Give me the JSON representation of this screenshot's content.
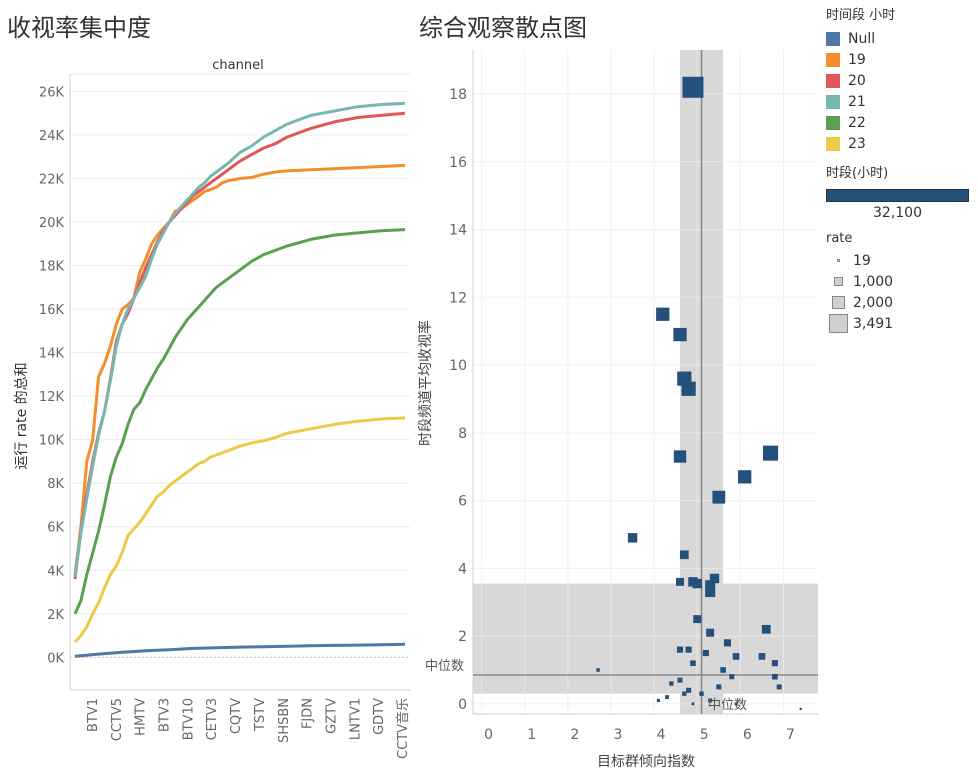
{
  "left_panel": {
    "title": "收视率集中度"
  },
  "right_panel": {
    "title": "综合观察散点图"
  },
  "legend": {
    "color_title": "时间段 小时",
    "items": [
      {
        "label": "Null",
        "color": "#4e79a7"
      },
      {
        "label": "19",
        "color": "#f28e2b"
      },
      {
        "label": "20",
        "color": "#e15759"
      },
      {
        "label": "21",
        "color": "#76b7b2"
      },
      {
        "label": "22",
        "color": "#59a14f"
      },
      {
        "label": "23",
        "color": "#edc948"
      }
    ],
    "bar_title": "时段(小时)",
    "bar_value": "32,100",
    "bar_color": "#24517c",
    "size_title": "rate",
    "size_items": [
      "19",
      "1,000",
      "2,000",
      "3,491"
    ]
  },
  "chart_data": [
    {
      "type": "line",
      "title": "",
      "header": "channel",
      "xlabel": "",
      "ylabel": "运行 rate 的总和",
      "ylim": [
        -1500,
        26800
      ],
      "yticks": [
        "0K",
        "2K",
        "4K",
        "6K",
        "8K",
        "10K",
        "12K",
        "14K",
        "16K",
        "18K",
        "20K",
        "22K",
        "24K",
        "26K"
      ],
      "categories": [
        "BTV1",
        "CCTV5",
        "HMTV",
        "BTV3",
        "BTV10",
        "CETV3",
        "CQTV",
        "TSTV",
        "SHSBN",
        "FJDN",
        "GZTV",
        "LNTV1",
        "GDTV",
        "CCTV音乐"
      ],
      "x_range": [
        0,
        56
      ],
      "series": [
        {
          "name": "Null",
          "color": "#4e79a7",
          "points": [
            [
              0,
              50
            ],
            [
              4,
              150
            ],
            [
              8,
              230
            ],
            [
              12,
              300
            ],
            [
              16,
              350
            ],
            [
              20,
              410
            ],
            [
              24,
              440
            ],
            [
              28,
              470
            ],
            [
              32,
              490
            ],
            [
              36,
              510
            ],
            [
              40,
              530
            ],
            [
              44,
              550
            ],
            [
              48,
              565
            ],
            [
              52,
              580
            ],
            [
              56,
              600
            ]
          ]
        },
        {
          "name": "19",
          "color": "#f28e2b",
          "points": [
            [
              0,
              3800
            ],
            [
              1,
              6000
            ],
            [
              2,
              9000
            ],
            [
              3,
              10000
            ],
            [
              4,
              12900
            ],
            [
              5,
              13500
            ],
            [
              6,
              14300
            ],
            [
              7,
              15300
            ],
            [
              8,
              16000
            ],
            [
              9,
              16200
            ],
            [
              10,
              16500
            ],
            [
              11,
              17700
            ],
            [
              12,
              18300
            ],
            [
              13,
              19000
            ],
            [
              14,
              19400
            ],
            [
              15,
              19700
            ],
            [
              16,
              20000
            ],
            [
              17,
              20500
            ],
            [
              18,
              20600
            ],
            [
              19,
              20800
            ],
            [
              20,
              21000
            ],
            [
              21,
              21200
            ],
            [
              22,
              21400
            ],
            [
              23,
              21500
            ],
            [
              24,
              21600
            ],
            [
              25,
              21800
            ],
            [
              26,
              21900
            ],
            [
              28,
              22000
            ],
            [
              30,
              22050
            ],
            [
              32,
              22200
            ],
            [
              34,
              22300
            ],
            [
              36,
              22350
            ],
            [
              40,
              22400
            ],
            [
              44,
              22450
            ],
            [
              48,
              22500
            ],
            [
              52,
              22550
            ],
            [
              56,
              22600
            ]
          ]
        },
        {
          "name": "20",
          "color": "#e15759",
          "points": [
            [
              0,
              3600
            ],
            [
              1,
              5800
            ],
            [
              2,
              7500
            ],
            [
              3,
              9000
            ],
            [
              4,
              10300
            ],
            [
              5,
              11300
            ],
            [
              6,
              12800
            ],
            [
              7,
              14500
            ],
            [
              8,
              15300
            ],
            [
              9,
              15800
            ],
            [
              10,
              16500
            ],
            [
              11,
              17200
            ],
            [
              12,
              17900
            ],
            [
              13,
              18500
            ],
            [
              14,
              19100
            ],
            [
              15,
              19600
            ],
            [
              16,
              20000
            ],
            [
              17,
              20300
            ],
            [
              18,
              20600
            ],
            [
              19,
              20900
            ],
            [
              20,
              21200
            ],
            [
              21,
              21400
            ],
            [
              22,
              21600
            ],
            [
              23,
              21800
            ],
            [
              24,
              22000
            ],
            [
              26,
              22400
            ],
            [
              28,
              22800
            ],
            [
              30,
              23100
            ],
            [
              32,
              23400
            ],
            [
              34,
              23600
            ],
            [
              36,
              23900
            ],
            [
              40,
              24300
            ],
            [
              44,
              24600
            ],
            [
              48,
              24800
            ],
            [
              52,
              24900
            ],
            [
              56,
              25000
            ]
          ]
        },
        {
          "name": "21",
          "color": "#76b7b2",
          "points": [
            [
              0,
              3700
            ],
            [
              1,
              5700
            ],
            [
              2,
              7300
            ],
            [
              3,
              8800
            ],
            [
              4,
              10200
            ],
            [
              5,
              11300
            ],
            [
              6,
              12700
            ],
            [
              7,
              14300
            ],
            [
              8,
              15300
            ],
            [
              9,
              16000
            ],
            [
              10,
              16500
            ],
            [
              11,
              17000
            ],
            [
              12,
              17500
            ],
            [
              13,
              18300
            ],
            [
              14,
              19000
            ],
            [
              15,
              19500
            ],
            [
              16,
              20000
            ],
            [
              17,
              20400
            ],
            [
              18,
              20700
            ],
            [
              19,
              21000
            ],
            [
              20,
              21300
            ],
            [
              21,
              21600
            ],
            [
              22,
              21800
            ],
            [
              23,
              22100
            ],
            [
              24,
              22300
            ],
            [
              26,
              22700
            ],
            [
              28,
              23200
            ],
            [
              30,
              23500
            ],
            [
              32,
              23900
            ],
            [
              34,
              24200
            ],
            [
              36,
              24500
            ],
            [
              40,
              24900
            ],
            [
              44,
              25100
            ],
            [
              48,
              25300
            ],
            [
              52,
              25400
            ],
            [
              56,
              25450
            ]
          ]
        },
        {
          "name": "22",
          "color": "#59a14f",
          "points": [
            [
              0,
              2000
            ],
            [
              1,
              2600
            ],
            [
              2,
              3800
            ],
            [
              3,
              4800
            ],
            [
              4,
              5800
            ],
            [
              5,
              7000
            ],
            [
              6,
              8300
            ],
            [
              7,
              9200
            ],
            [
              8,
              9800
            ],
            [
              9,
              10700
            ],
            [
              10,
              11400
            ],
            [
              11,
              11700
            ],
            [
              12,
              12300
            ],
            [
              13,
              12800
            ],
            [
              14,
              13300
            ],
            [
              15,
              13700
            ],
            [
              16,
              14200
            ],
            [
              17,
              14700
            ],
            [
              18,
              15100
            ],
            [
              19,
              15500
            ],
            [
              20,
              15800
            ],
            [
              21,
              16100
            ],
            [
              22,
              16400
            ],
            [
              23,
              16700
            ],
            [
              24,
              17000
            ],
            [
              26,
              17400
            ],
            [
              28,
              17800
            ],
            [
              30,
              18200
            ],
            [
              32,
              18500
            ],
            [
              34,
              18700
            ],
            [
              36,
              18900
            ],
            [
              40,
              19200
            ],
            [
              44,
              19400
            ],
            [
              48,
              19500
            ],
            [
              52,
              19600
            ],
            [
              56,
              19650
            ]
          ]
        },
        {
          "name": "23",
          "color": "#edc948",
          "points": [
            [
              0,
              700
            ],
            [
              1,
              1000
            ],
            [
              2,
              1400
            ],
            [
              3,
              2000
            ],
            [
              4,
              2500
            ],
            [
              5,
              3200
            ],
            [
              6,
              3800
            ],
            [
              7,
              4200
            ],
            [
              8,
              4800
            ],
            [
              9,
              5600
            ],
            [
              10,
              5900
            ],
            [
              11,
              6200
            ],
            [
              12,
              6600
            ],
            [
              13,
              7000
            ],
            [
              14,
              7400
            ],
            [
              15,
              7600
            ],
            [
              16,
              7900
            ],
            [
              17,
              8100
            ],
            [
              18,
              8300
            ],
            [
              19,
              8500
            ],
            [
              20,
              8700
            ],
            [
              21,
              8900
            ],
            [
              22,
              9000
            ],
            [
              23,
              9200
            ],
            [
              24,
              9300
            ],
            [
              26,
              9500
            ],
            [
              28,
              9700
            ],
            [
              30,
              9850
            ],
            [
              32,
              9950
            ],
            [
              34,
              10100
            ],
            [
              36,
              10300
            ],
            [
              40,
              10500
            ],
            [
              44,
              10700
            ],
            [
              48,
              10850
            ],
            [
              52,
              10950
            ],
            [
              56,
              11000
            ]
          ]
        }
      ]
    },
    {
      "type": "scatter",
      "title": "",
      "xlabel": "目标群倾向指数",
      "ylabel": "时段频道平均收视率",
      "xlim": [
        -0.2,
        7.8
      ],
      "ylim": [
        -0.3,
        19.3
      ],
      "xticks": [
        0,
        1,
        2,
        3,
        4,
        5,
        6,
        7
      ],
      "yticks": [
        0,
        2,
        4,
        6,
        8,
        10,
        12,
        14,
        16,
        18
      ],
      "median_x": 5.1,
      "median_y": 0.85,
      "band_x": [
        4.6,
        5.6
      ],
      "band_y": [
        0.3,
        3.55
      ],
      "median_labels": [
        "中位数",
        "中位数"
      ],
      "point_color": "#24517c",
      "points": [
        [
          4.9,
          18.2,
          3491
        ],
        [
          4.2,
          11.5,
          1400
        ],
        [
          4.6,
          10.9,
          1400
        ],
        [
          4.7,
          9.6,
          1600
        ],
        [
          4.8,
          9.3,
          1600
        ],
        [
          4.6,
          7.3,
          1200
        ],
        [
          6.7,
          7.4,
          1800
        ],
        [
          6.1,
          6.7,
          1400
        ],
        [
          5.5,
          6.1,
          1300
        ],
        [
          3.5,
          4.9,
          700
        ],
        [
          4.7,
          4.4,
          600
        ],
        [
          4.9,
          3.6,
          700
        ],
        [
          5.0,
          3.55,
          700
        ],
        [
          5.3,
          3.5,
          800
        ],
        [
          5.4,
          3.7,
          700
        ],
        [
          4.6,
          3.6,
          500
        ],
        [
          5.3,
          3.3,
          800
        ],
        [
          5.0,
          2.5,
          500
        ],
        [
          5.3,
          2.1,
          500
        ],
        [
          5.7,
          1.8,
          400
        ],
        [
          6.6,
          2.2,
          600
        ],
        [
          4.6,
          1.6,
          300
        ],
        [
          4.8,
          1.6,
          300
        ],
        [
          5.2,
          1.5,
          300
        ],
        [
          5.9,
          1.4,
          350
        ],
        [
          6.5,
          1.4,
          350
        ],
        [
          6.8,
          1.2,
          300
        ],
        [
          4.9,
          1.2,
          250
        ],
        [
          5.6,
          1.0,
          250
        ],
        [
          6.8,
          0.8,
          250
        ],
        [
          5.8,
          0.8,
          200
        ],
        [
          4.6,
          0.7,
          200
        ],
        [
          4.4,
          0.6,
          150
        ],
        [
          4.8,
          0.4,
          200
        ],
        [
          5.5,
          0.5,
          200
        ],
        [
          6.9,
          0.5,
          200
        ],
        [
          5.1,
          0.3,
          150
        ],
        [
          4.7,
          0.3,
          150
        ],
        [
          4.3,
          0.2,
          120
        ],
        [
          4.1,
          0.1,
          80
        ],
        [
          2.7,
          1.0,
          100
        ],
        [
          5.9,
          0.0,
          60
        ],
        [
          4.9,
          0.0,
          60
        ],
        [
          7.4,
          -0.15,
          40
        ],
        [
          5.3,
          0.1,
          120
        ]
      ]
    }
  ]
}
